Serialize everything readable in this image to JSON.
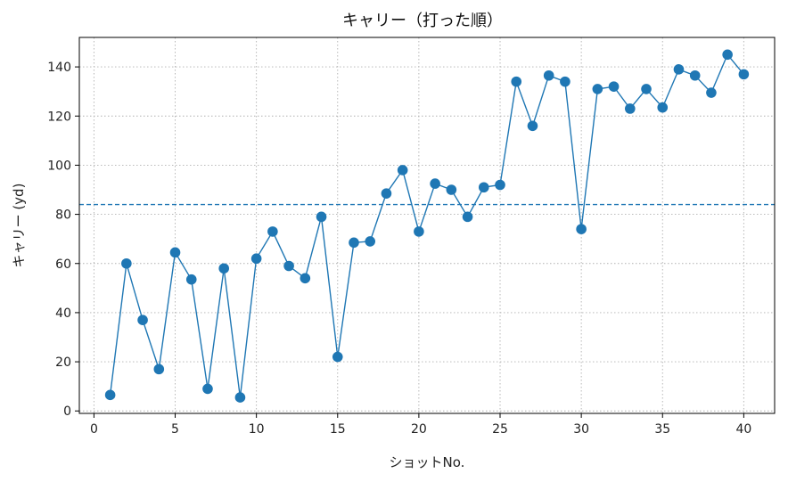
{
  "chart_data": {
    "type": "line",
    "title": "キャリー（打った順）",
    "xlabel": "ショットNo.",
    "ylabel": "キャリー (yd)",
    "xlim": [
      -0.9,
      41.9
    ],
    "ylim": [
      -1,
      152
    ],
    "x_ticks": [
      0,
      5,
      10,
      15,
      20,
      25,
      30,
      35,
      40
    ],
    "y_ticks": [
      0,
      20,
      40,
      60,
      80,
      100,
      120,
      140
    ],
    "grid": true,
    "grid_style": "dotted",
    "colors": {
      "series": "#1f77b4",
      "grid": "#b0b0b0",
      "axis": "#000000"
    },
    "series": [
      {
        "x": [
          1,
          2,
          3,
          4,
          5,
          6,
          7,
          8,
          9,
          10,
          11,
          12,
          13,
          14,
          15,
          16,
          17,
          18,
          19,
          20,
          21,
          22,
          23,
          24,
          25,
          26,
          27,
          28,
          29,
          30,
          31,
          32,
          33,
          34,
          35,
          36,
          37,
          38,
          39,
          40
        ],
        "values": [
          6.5,
          60,
          37,
          17,
          64.5,
          53.5,
          9,
          58,
          5.5,
          62,
          73,
          59,
          54,
          79,
          22,
          68.5,
          69,
          88.5,
          98,
          73,
          92.5,
          90,
          79,
          91,
          92,
          134,
          116,
          136.5,
          134,
          74,
          131,
          132,
          123,
          131,
          123.5,
          139,
          136.5,
          129.5,
          145,
          137
        ]
      }
    ],
    "reference_line": {
      "y": 84,
      "style": "dashed"
    }
  }
}
